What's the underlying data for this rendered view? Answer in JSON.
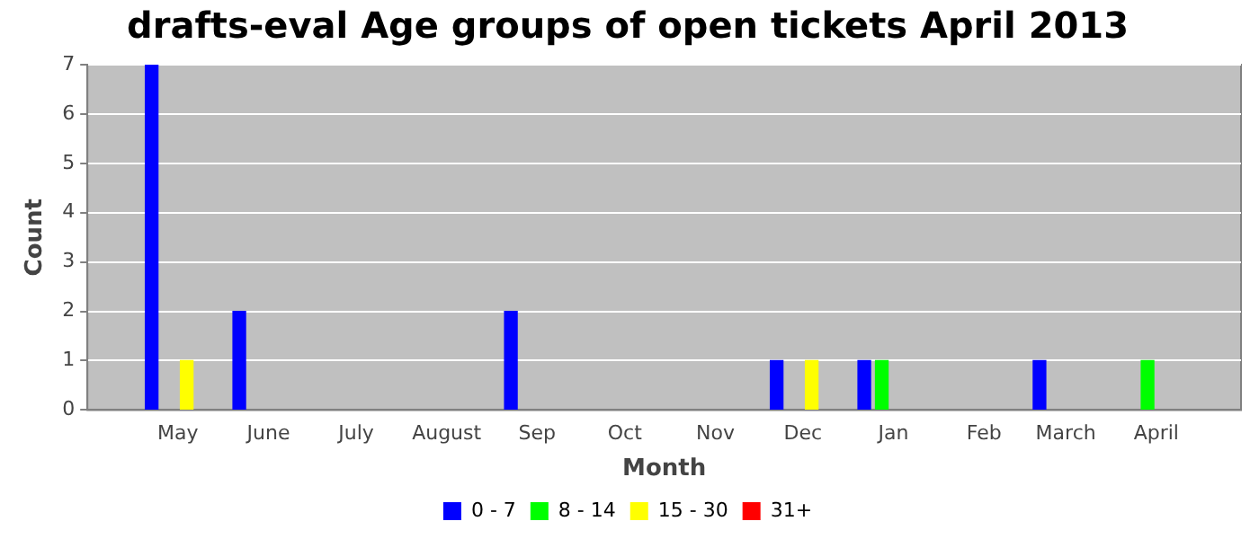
{
  "chart_data": {
    "type": "bar",
    "title": "drafts-eval Age groups of open tickets April 2013",
    "xlabel": "Month",
    "ylabel": "Count",
    "series": [
      {
        "name": "0 - 7",
        "color": "#0000ff",
        "x": [
          "2012-04-22",
          "2012-05-22",
          "2012-08-23",
          "2012-11-22",
          "2012-12-22",
          "2013-02-20"
        ],
        "values": [
          7,
          2,
          2,
          1,
          1,
          1
        ]
      },
      {
        "name": "8 - 14",
        "color": "#00ff00",
        "x": [
          "2012-12-28",
          "2013-03-29"
        ],
        "values": [
          1,
          1
        ]
      },
      {
        "name": "15 - 30",
        "color": "#ffff00",
        "x": [
          "2012-05-04",
          "2012-12-04"
        ],
        "values": [
          1,
          1
        ]
      },
      {
        "name": "31+",
        "color": "#ff0000"
      }
    ],
    "xlim": [
      "2012-03-31",
      "2013-04-30"
    ],
    "xticks": [
      {
        "value": "2012-05-01",
        "label": "May"
      },
      {
        "value": "2012-06-01",
        "label": "June"
      },
      {
        "value": "2012-07-01",
        "label": "July"
      },
      {
        "value": "2012-08-01",
        "label": "August"
      },
      {
        "value": "2012-09-01",
        "label": "Sep"
      },
      {
        "value": "2012-10-01",
        "label": "Oct"
      },
      {
        "value": "2012-11-01",
        "label": "Nov"
      },
      {
        "value": "2012-12-01",
        "label": "Dec"
      },
      {
        "value": "2013-01-01",
        "label": "Jan"
      },
      {
        "value": "2013-02-01",
        "label": "Feb"
      },
      {
        "value": "2013-03-01",
        "label": "March"
      },
      {
        "value": "2013-04-01",
        "label": "April"
      }
    ],
    "ylim": [
      0,
      7
    ],
    "yticks": [
      0,
      1,
      2,
      3,
      4,
      5,
      6,
      7
    ],
    "grid": "y",
    "legend": "bottom"
  }
}
